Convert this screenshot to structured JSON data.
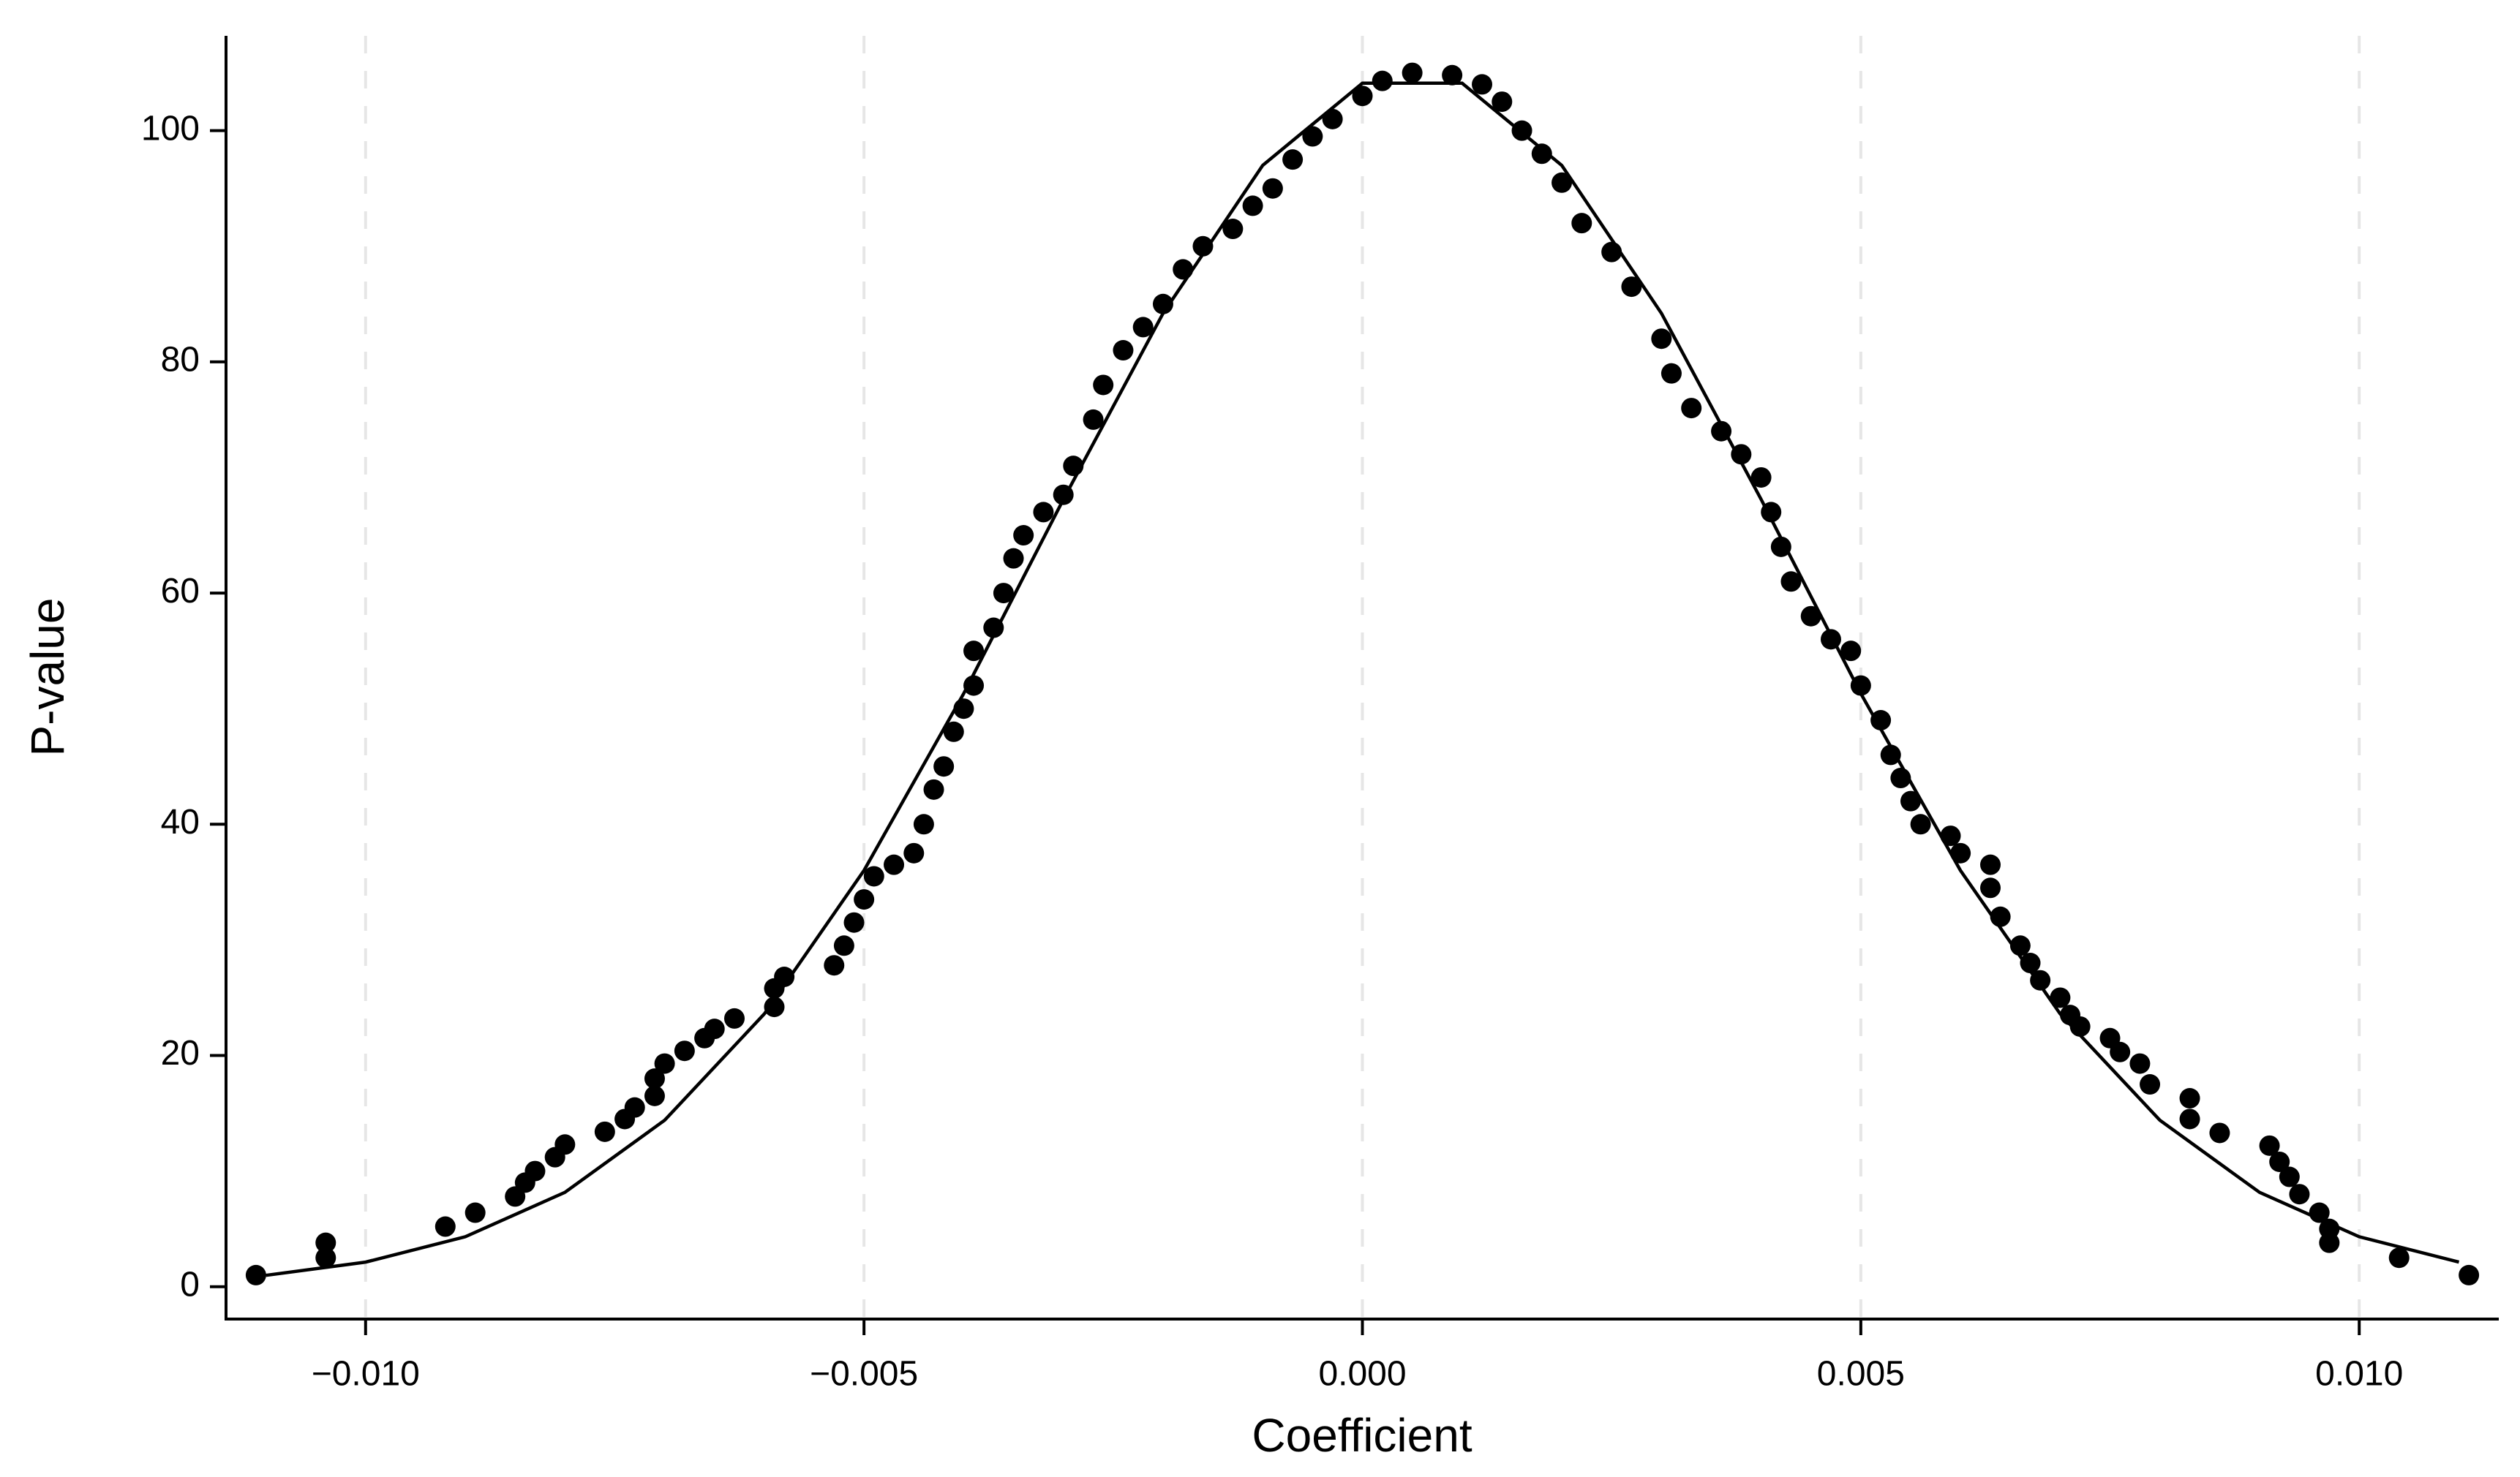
{
  "chart_data": {
    "type": "scatter",
    "x_label": "Coefficient",
    "y_label": "P-value",
    "color": "#000000",
    "xlim": [
      -0.0114,
      0.0114
    ],
    "ylim": [
      -2.8,
      108.2
    ],
    "xticks": [
      {
        "value": -0.01,
        "label": "−0.010"
      },
      {
        "value": -0.005,
        "label": "−0.005"
      },
      {
        "value": 0,
        "label": "0.000"
      },
      0.005,
      {
        "value": 0.01,
        "label": "0.010"
      }
    ],
    "yticks": [
      0,
      20,
      40,
      60,
      80,
      100
    ],
    "xgrid": true,
    "points": {
      "x": [
        -0.0111,
        -0.0104,
        -0.0104,
        -0.0092,
        -0.0089,
        -0.0085,
        -0.0084,
        -0.0083,
        -0.0081,
        -0.008,
        -0.0076,
        -0.0074,
        -0.0073,
        -0.0071,
        -0.0071,
        -0.007,
        -0.0068,
        -0.0066,
        -0.0065,
        -0.0063,
        -0.0059,
        -0.0059,
        -0.0058,
        -0.0053,
        -0.0052,
        -0.0051,
        -0.005,
        -0.0049,
        -0.0047,
        -0.0045,
        -0.0044,
        -0.0043,
        -0.0042,
        -0.0041,
        -0.004,
        -0.0039,
        -0.0039,
        -0.0037,
        -0.0036,
        -0.0035,
        -0.0034,
        -0.0032,
        -0.003,
        -0.0029,
        -0.0027,
        -0.0026,
        -0.0024,
        -0.0022,
        -0.002,
        -0.0018,
        -0.0016,
        -0.0013,
        -0.0011,
        -0.0009,
        -0.0007,
        -0.0005,
        -0.0003,
        0.0,
        0.0002,
        0.0005,
        0.0009,
        0.0012,
        0.0014,
        0.0016,
        0.0018,
        0.002,
        0.0022,
        0.0025,
        0.0027,
        0.003,
        0.0031,
        0.0033,
        0.0036,
        0.0038,
        0.004,
        0.0041,
        0.0042,
        0.0043,
        0.0045,
        0.0047,
        0.0049,
        0.005,
        0.0052,
        0.0053,
        0.0054,
        0.0055,
        0.0056,
        0.0059,
        0.006,
        0.0063,
        0.0063,
        0.0064,
        0.0066,
        0.0067,
        0.0068,
        0.007,
        0.0071,
        0.0072,
        0.0075,
        0.0076,
        0.0078,
        0.0079,
        0.0083,
        0.0083,
        0.0086,
        0.0091,
        0.0092,
        0.0093,
        0.0094,
        0.0096,
        0.0097,
        0.0097,
        0.0104,
        0.0111
      ],
      "values": [
        1,
        2.5,
        3.8,
        5.2,
        6.4,
        7.8,
        9,
        10,
        11.2,
        12.3,
        13.4,
        14.5,
        15.5,
        16.5,
        18,
        19.3,
        20.4,
        21.5,
        22.3,
        23.2,
        24.2,
        25.8,
        26.8,
        27.8,
        29.5,
        31.5,
        33.5,
        35.5,
        36.5,
        37.5,
        40,
        43,
        45,
        48,
        50,
        52,
        55,
        57,
        60,
        63,
        65,
        67,
        68.5,
        71,
        75,
        78,
        81,
        83,
        85,
        88,
        90,
        91.5,
        93.5,
        95,
        97.5,
        99.5,
        101,
        103,
        104.3,
        105,
        104.8,
        104,
        102.5,
        100,
        98,
        95.5,
        92,
        89.5,
        86.5,
        82,
        79,
        76,
        74,
        72,
        70,
        67,
        64,
        61,
        58,
        56,
        55,
        52,
        49,
        46,
        44,
        42,
        40,
        39,
        37.5,
        36.5,
        34.5,
        32,
        29.5,
        28,
        26.5,
        25,
        23.5,
        22.5,
        21.5,
        20.3,
        19.3,
        17.5,
        16.3,
        14.5,
        13.3,
        12.2,
        10.8,
        9.5,
        8,
        6.4,
        5,
        3.8,
        2.5,
        1
      ]
    },
    "curve": {
      "x": [
        -0.011,
        -0.01,
        -0.009,
        -0.008,
        -0.007,
        -0.006,
        -0.005,
        -0.004,
        -0.003,
        -0.002,
        -0.001,
        0,
        0.001,
        0.002,
        0.003,
        0.004,
        0.005,
        0.006,
        0.007,
        0.008,
        0.009,
        0.01,
        0.011
      ],
      "values": [
        0.98,
        2.13,
        4.32,
        8.16,
        14.4,
        23.6,
        36.0,
        51.3,
        68.1,
        84.2,
        97.0,
        104.1,
        104.1,
        97.0,
        84.2,
        68.1,
        51.3,
        36.0,
        23.6,
        14.4,
        8.16,
        4.32,
        2.13
      ]
    }
  }
}
